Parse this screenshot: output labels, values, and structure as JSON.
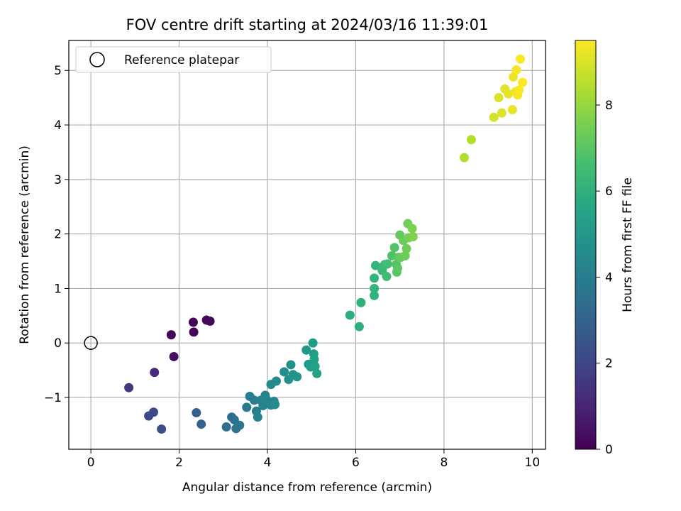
{
  "chart_data": {
    "type": "scatter",
    "title": "FOV centre drift starting at 2024/03/16 11:39:01",
    "xlabel": "Angular distance from reference (arcmin)",
    "ylabel": "Rotation from reference (arcmin)",
    "xlim": [
      -0.5,
      10.3
    ],
    "ylim": [
      -1.95,
      5.55
    ],
    "xticks": [
      0,
      2,
      4,
      6,
      8,
      10
    ],
    "yticks": [
      -1,
      0,
      1,
      2,
      3,
      4,
      5
    ],
    "grid": true,
    "legend": {
      "position": "top-left",
      "entries": [
        "Reference platepar"
      ]
    },
    "reference_point": {
      "x": 0,
      "y": 0
    },
    "colorbar": {
      "label": "Hours from first FF file",
      "min": 0,
      "max": 9.5,
      "ticks": [
        0,
        2,
        4,
        6,
        8
      ],
      "colormap": "viridis"
    },
    "series": [
      {
        "x": [
          1.82,
          2.32,
          2.33,
          2.62,
          2.7,
          1.88,
          1.44,
          0.86,
          1.31,
          1.42,
          1.6,
          2.39,
          2.5,
          3.07,
          3.19,
          3.25,
          3.29,
          3.37,
          3.53,
          3.6,
          3.7,
          3.75,
          3.78,
          3.85,
          3.9,
          3.95,
          3.98,
          4.08,
          4.15,
          4.2,
          4.08,
          4.17,
          4.38,
          4.48,
          4.53,
          4.58,
          4.67,
          4.88,
          4.93,
          4.98,
          5.03,
          5.05,
          5.06,
          5.08,
          5.12,
          5.87,
          6.08,
          6.12,
          6.42,
          6.42,
          6.42,
          6.45,
          6.6,
          6.62,
          6.66,
          6.7,
          6.72,
          6.82,
          6.88,
          6.92,
          6.93,
          6.95,
          6.97,
          7.0,
          7.02,
          7.08,
          7.12,
          7.15,
          7.18,
          7.2,
          7.28,
          7.3,
          8.46,
          8.62,
          9.13,
          9.24,
          9.31,
          9.38,
          9.46,
          9.55,
          9.57,
          9.62,
          9.64,
          9.67,
          9.7,
          9.73,
          9.78
        ],
        "y": [
          0.15,
          0.38,
          0.2,
          0.42,
          0.4,
          -0.25,
          -0.54,
          -0.82,
          -1.34,
          -1.27,
          -1.58,
          -1.28,
          -1.49,
          -1.54,
          -1.36,
          -1.41,
          -1.57,
          -1.51,
          -1.18,
          -0.98,
          -1.05,
          -1.25,
          -1.36,
          -1.05,
          -1.15,
          -0.96,
          -1.04,
          -1.14,
          -1.07,
          -0.7,
          -0.76,
          -1.13,
          -0.53,
          -0.67,
          -0.4,
          -0.58,
          -0.62,
          -0.13,
          -0.39,
          -0.44,
          0.0,
          -0.2,
          -0.3,
          -0.43,
          -0.56,
          0.51,
          0.3,
          0.74,
          0.87,
          1.0,
          1.19,
          1.42,
          1.33,
          1.4,
          1.44,
          1.22,
          1.45,
          1.6,
          1.75,
          1.44,
          1.3,
          1.37,
          1.57,
          1.98,
          1.57,
          1.88,
          1.6,
          1.73,
          2.19,
          1.93,
          2.1,
          1.95,
          3.4,
          3.73,
          4.14,
          4.5,
          4.22,
          4.66,
          4.57,
          4.28,
          4.88,
          4.61,
          5.01,
          4.55,
          4.64,
          5.21,
          4.78
        ],
        "hours": [
          0.05,
          0.1,
          0.12,
          0.17,
          0.22,
          0.4,
          1.05,
          1.5,
          2.05,
          2.1,
          2.3,
          2.9,
          3.0,
          3.4,
          3.45,
          3.55,
          3.6,
          3.7,
          3.9,
          4.0,
          4.05,
          4.1,
          4.15,
          4.2,
          4.25,
          4.3,
          4.3,
          4.35,
          4.4,
          4.45,
          4.5,
          4.55,
          4.7,
          4.75,
          4.8,
          4.85,
          4.9,
          5.1,
          5.15,
          5.2,
          5.25,
          5.3,
          5.35,
          5.4,
          5.45,
          5.9,
          6.0,
          6.05,
          6.15,
          6.2,
          6.25,
          6.3,
          6.4,
          6.45,
          6.5,
          6.55,
          6.6,
          6.8,
          6.9,
          6.95,
          7.0,
          7.05,
          7.1,
          7.2,
          7.25,
          7.3,
          7.35,
          7.4,
          7.45,
          7.5,
          7.6,
          7.65,
          8.4,
          8.45,
          8.9,
          9.0,
          9.05,
          9.1,
          9.15,
          9.2,
          9.25,
          9.3,
          9.35,
          9.4,
          9.45,
          9.5,
          9.5
        ]
      }
    ]
  }
}
